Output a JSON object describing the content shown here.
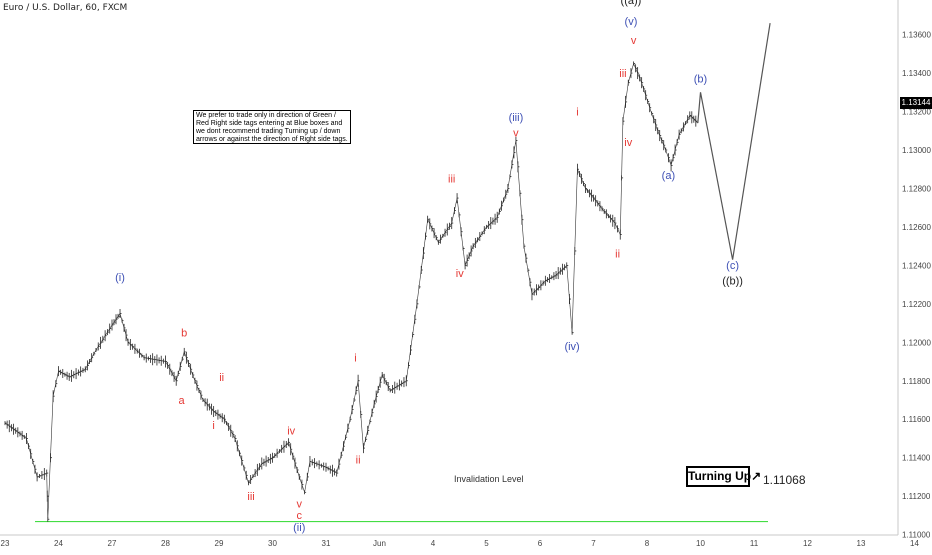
{
  "title": "Euro / U.S. Dollar, 60, FXCM",
  "note": "We prefer to trade only in direction of Green / Red Right side tags entering at Blue boxes and we dont recommend trading Turning up / down arrows or against the direction of Right side tags.",
  "turning_label": "Turning Up",
  "invalidation": {
    "label": "Invalidation Level",
    "value": "1.11068"
  },
  "current_price": "1.13144",
  "chart_data": {
    "type": "line",
    "title": "Euro / U.S. Dollar, 60, FXCM",
    "ylim": [
      1.1092,
      1.1378
    ],
    "y_ticks": [
      "1.13600",
      "1.13400",
      "1.13200",
      "1.13000",
      "1.12800",
      "1.12600",
      "1.12400",
      "1.12200",
      "1.12000",
      "1.11800",
      "1.11600",
      "1.11400",
      "1.11200",
      "1.11000"
    ],
    "x_ticks": [
      "23",
      "24",
      "27",
      "28",
      "29",
      "30",
      "31",
      "Jun",
      "4",
      "5",
      "6",
      "7",
      "8",
      "10",
      "11",
      "12",
      "13",
      "14"
    ],
    "price_path": [
      [
        0,
        1.1158
      ],
      [
        0.4,
        1.115
      ],
      [
        0.6,
        1.113
      ],
      [
        0.78,
        1.1132
      ],
      [
        0.8,
        1.1108
      ],
      [
        0.9,
        1.1172
      ],
      [
        1.0,
        1.1185
      ],
      [
        1.2,
        1.1182
      ],
      [
        1.5,
        1.1186
      ],
      [
        1.7,
        1.1196
      ],
      [
        2.0,
        1.1209
      ],
      [
        2.15,
        1.1215
      ],
      [
        2.3,
        1.12
      ],
      [
        2.6,
        1.1192
      ],
      [
        3.0,
        1.119
      ],
      [
        3.2,
        1.118
      ],
      [
        3.35,
        1.1195
      ],
      [
        3.55,
        1.118
      ],
      [
        3.7,
        1.117
      ],
      [
        3.9,
        1.1164
      ],
      [
        4.1,
        1.116
      ],
      [
        4.3,
        1.115
      ],
      [
        4.55,
        1.1127
      ],
      [
        4.8,
        1.1137
      ],
      [
        5.0,
        1.114
      ],
      [
        5.3,
        1.1148
      ],
      [
        5.5,
        1.113
      ],
      [
        5.6,
        1.1122
      ],
      [
        5.7,
        1.1138
      ],
      [
        6.0,
        1.1135
      ],
      [
        6.2,
        1.1132
      ],
      [
        6.45,
        1.116
      ],
      [
        6.6,
        1.118
      ],
      [
        6.7,
        1.1145
      ],
      [
        6.9,
        1.1168
      ],
      [
        7.05,
        1.1183
      ],
      [
        7.2,
        1.1175
      ],
      [
        7.5,
        1.118
      ],
      [
        7.7,
        1.122
      ],
      [
        7.9,
        1.1264
      ],
      [
        8.1,
        1.1252
      ],
      [
        8.35,
        1.1262
      ],
      [
        8.45,
        1.1275
      ],
      [
        8.6,
        1.124
      ],
      [
        8.75,
        1.125
      ],
      [
        9.0,
        1.126
      ],
      [
        9.2,
        1.1265
      ],
      [
        9.4,
        1.128
      ],
      [
        9.55,
        1.1305
      ],
      [
        9.7,
        1.125
      ],
      [
        9.85,
        1.1225
      ],
      [
        10.1,
        1.1232
      ],
      [
        10.3,
        1.1235
      ],
      [
        10.5,
        1.124
      ],
      [
        10.6,
        1.1205
      ],
      [
        10.7,
        1.129
      ],
      [
        10.85,
        1.128
      ],
      [
        11.0,
        1.1275
      ],
      [
        11.2,
        1.1268
      ],
      [
        11.4,
        1.1262
      ],
      [
        11.5,
        1.1256
      ],
      [
        11.55,
        1.1315
      ],
      [
        11.65,
        1.1335
      ],
      [
        11.75,
        1.1345
      ],
      [
        11.9,
        1.1335
      ],
      [
        12.05,
        1.1322
      ],
      [
        12.2,
        1.131
      ],
      [
        12.35,
        1.13
      ],
      [
        12.45,
        1.1292
      ],
      [
        12.6,
        1.1308
      ],
      [
        12.8,
        1.1318
      ],
      [
        12.95,
        1.1314
      ]
    ],
    "projection": [
      [
        12.95,
        1.1314
      ],
      [
        13.0,
        1.133
      ],
      [
        13.6,
        1.1243
      ],
      [
        14.3,
        1.1366
      ]
    ],
    "invalidation_level": 1.11068,
    "wave_labels": [
      {
        "text": "(i)",
        "x": 2.15,
        "y": 1.1232,
        "color": "#3f51b5"
      },
      {
        "text": "b",
        "x": 3.35,
        "y": 1.1203,
        "color": "#e53935"
      },
      {
        "text": "a",
        "x": 3.3,
        "y": 1.1168,
        "color": "#e53935"
      },
      {
        "text": "ii",
        "x": 4.05,
        "y": 1.118,
        "color": "#e53935"
      },
      {
        "text": "i",
        "x": 3.9,
        "y": 1.1155,
        "color": "#e53935"
      },
      {
        "text": "iii",
        "x": 4.6,
        "y": 1.1118,
        "color": "#e53935"
      },
      {
        "text": "iv",
        "x": 5.35,
        "y": 1.1152,
        "color": "#e53935"
      },
      {
        "text": "v",
        "x": 5.5,
        "y": 1.1114,
        "color": "#e53935"
      },
      {
        "text": "c",
        "x": 5.5,
        "y": 1.1108,
        "color": "#e53935"
      },
      {
        "text": "(ii)",
        "x": 5.5,
        "y": 1.1102,
        "color": "#3f51b5"
      },
      {
        "text": "i",
        "x": 6.55,
        "y": 1.119,
        "color": "#e53935"
      },
      {
        "text": "ii",
        "x": 6.6,
        "y": 1.1137,
        "color": "#e53935"
      },
      {
        "text": "iii",
        "x": 8.35,
        "y": 1.1283,
        "color": "#e53935"
      },
      {
        "text": "iv",
        "x": 8.5,
        "y": 1.1234,
        "color": "#e53935"
      },
      {
        "text": "(iii)",
        "x": 9.55,
        "y": 1.1315,
        "color": "#3f51b5"
      },
      {
        "text": "v",
        "x": 9.55,
        "y": 1.1307,
        "color": "#e53935"
      },
      {
        "text": "(iv)",
        "x": 10.6,
        "y": 1.1196,
        "color": "#3f51b5"
      },
      {
        "text": "i",
        "x": 10.7,
        "y": 1.1318,
        "color": "#e53935"
      },
      {
        "text": "ii",
        "x": 11.45,
        "y": 1.1244,
        "color": "#e53935"
      },
      {
        "text": "iii",
        "x": 11.55,
        "y": 1.1338,
        "color": "#e53935"
      },
      {
        "text": "iv",
        "x": 11.65,
        "y": 1.1302,
        "color": "#e53935"
      },
      {
        "text": "v",
        "x": 11.75,
        "y": 1.1355,
        "color": "#e53935"
      },
      {
        "text": "(v)",
        "x": 11.7,
        "y": 1.1365,
        "color": "#3f51b5"
      },
      {
        "text": "((a))",
        "x": 11.7,
        "y": 1.1376,
        "color": "#222222"
      },
      {
        "text": "(a)",
        "x": 12.4,
        "y": 1.1285,
        "color": "#3f51b5"
      },
      {
        "text": "(b)",
        "x": 13.0,
        "y": 1.1335,
        "color": "#3f51b5"
      },
      {
        "text": "(c)",
        "x": 13.6,
        "y": 1.1238,
        "color": "#3f51b5"
      },
      {
        "text": "((b))",
        "x": 13.6,
        "y": 1.123,
        "color": "#222222"
      }
    ]
  }
}
